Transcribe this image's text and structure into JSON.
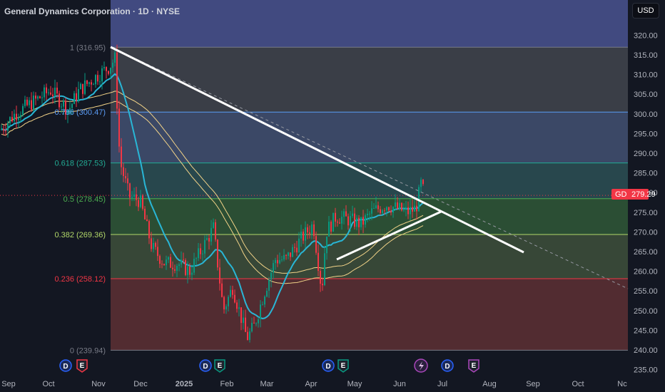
{
  "header": {
    "title": "General Dynamics Corporation · 1D · NYSE",
    "currency_button": "USD"
  },
  "price_tag": {
    "symbol": "GD",
    "value": "279.29",
    "color": "#f23645"
  },
  "chart_data": {
    "type": "candlestick",
    "symbol": "GD",
    "interval": "1D",
    "y_ticks": [
      235,
      240,
      245,
      250,
      255,
      260,
      265,
      270,
      275,
      280,
      285,
      290,
      295,
      300,
      305,
      310,
      315,
      320
    ],
    "x_tick_labels": [
      "Sep",
      "Oct",
      "Nov",
      "Dec",
      "2025",
      "Feb",
      "Mar",
      "Apr",
      "May",
      "Jun",
      "Jul",
      "Aug",
      "Sep",
      "Oct",
      "Nc"
    ],
    "bold_x_tick": "2025",
    "last_price": 279.29,
    "fib_levels": [
      {
        "label": "1 (316.95)",
        "value": 316.95,
        "color": "#787b86"
      },
      {
        "label": "0.786 (300.47)",
        "value": 300.47,
        "color": "#5b9cf6"
      },
      {
        "label": "0.618 (287.53)",
        "value": 287.53,
        "color": "#22ab94"
      },
      {
        "label": "0.5 (278.45)",
        "value": 278.45,
        "color": "#4caf50"
      },
      {
        "label": "0.382 (269.36)",
        "value": 269.36,
        "color": "#b2d869"
      },
      {
        "label": "0.236 (258.12)",
        "value": 258.12,
        "color": "#f23645"
      },
      {
        "label": "0 (239.94)",
        "value": 239.94,
        "color": "#787b86"
      }
    ],
    "upper_band_color": "#4a5490",
    "colors": {
      "up": "#089981",
      "down": "#f23645",
      "ma_fast": "#29b6d6",
      "ma_slow": "#f2d388",
      "trendline": "#ffffff"
    },
    "events": [
      {
        "date": "Oct",
        "glyphs": [
          "D",
          "E"
        ]
      },
      {
        "date": "Jan",
        "glyphs": [
          "D",
          "E"
        ]
      },
      {
        "date": "Apr",
        "glyphs": [
          "D",
          "E"
        ]
      },
      {
        "date": "Jun",
        "glyphs": [
          "split",
          "D",
          "E"
        ]
      }
    ]
  }
}
